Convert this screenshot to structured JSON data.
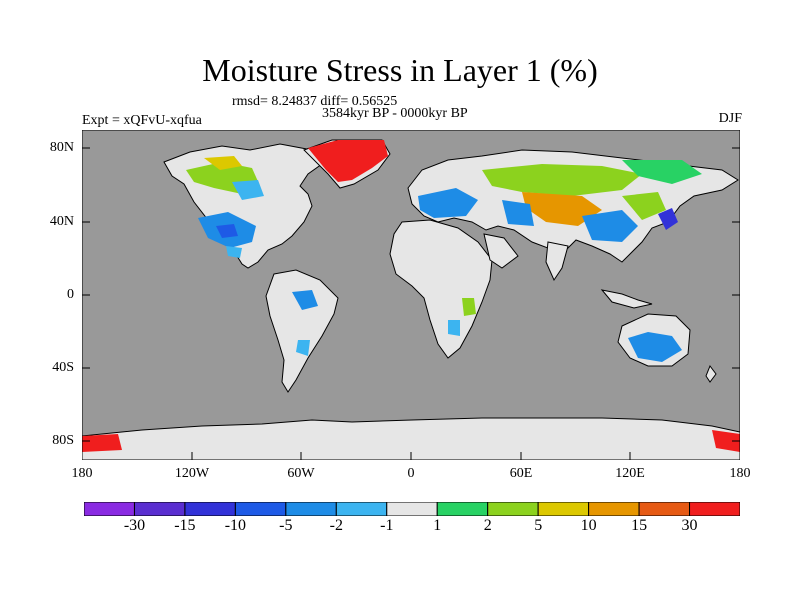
{
  "figure": {
    "title": "Moisture Stress in Layer 1 (%)",
    "stats": "rmsd= 8.24837 diff= 0.56525",
    "period": "3584kyr BP - 0000kyr BP",
    "experiment": "Expt = xQFvU-xqfua",
    "season": "DJF"
  },
  "axes": {
    "y_ticks": [
      "80N",
      "40N",
      "0",
      "40S",
      "80S"
    ],
    "x_ticks": [
      "180",
      "120W",
      "60W",
      "0",
      "60E",
      "120E",
      "180"
    ]
  },
  "colors": {
    "ocean": "#999999",
    "land_neutral": "#e6e6e6"
  },
  "colorbar": {
    "labels": [
      "-30",
      "-15",
      "-10",
      "-5",
      "-2",
      "-1",
      "1",
      "2",
      "5",
      "10",
      "15",
      "30"
    ],
    "colors": [
      "#8a2be2",
      "#5a2ed0",
      "#3232d8",
      "#1e5ae6",
      "#1e8ce6",
      "#3cb4f0",
      "#e6e6e6",
      "#28d264",
      "#8cd21e",
      "#dcc800",
      "#e69600",
      "#e65a14",
      "#f01e1e"
    ]
  }
}
